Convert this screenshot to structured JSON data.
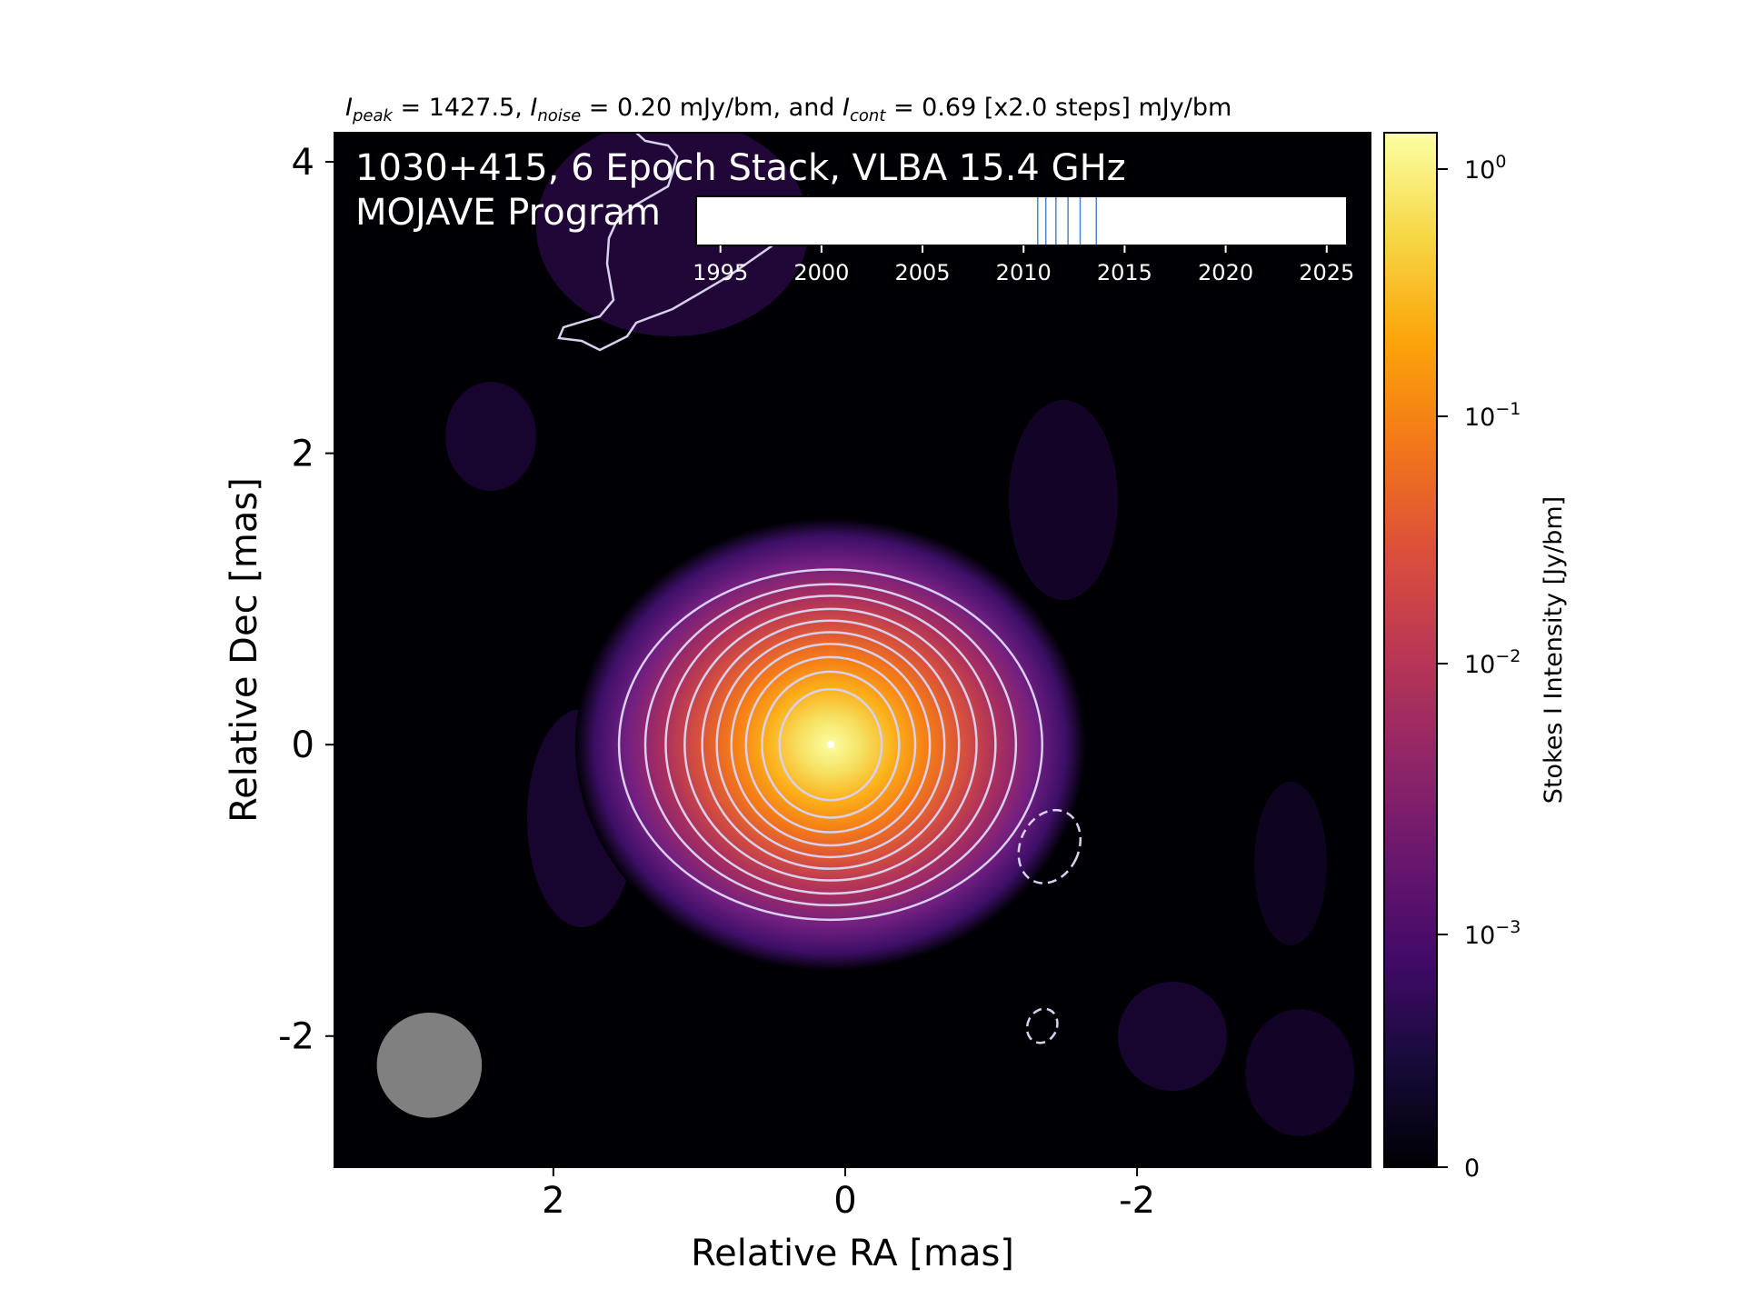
{
  "header": {
    "peak_label": "I",
    "peak_sub": "peak",
    "peak_value": " = 1427.5, ",
    "noise_label": "I",
    "noise_sub": "noise",
    "noise_value": " = 0.20 mJy/bm, and ",
    "cont_label": "I",
    "cont_sub": "cont",
    "cont_value": " = 0.69 [x2.0 steps] mJy/bm"
  },
  "overlay": {
    "title_line1": "1030+415, 6 Epoch Stack, VLBA 15.4 GHz",
    "title_line2": "MOJAVE Program"
  },
  "colors": {
    "background": "#000004",
    "contour": "#d9d0ee",
    "beam": "#808080",
    "epoch_marker": "#4a86c8"
  },
  "chart_data": [
    {
      "type": "heatmap",
      "title": "",
      "xlabel": "Relative RA [mas]",
      "ylabel": "Relative Dec [mas]",
      "xlim": [
        3.5,
        -3.6
      ],
      "ylim": [
        -2.9,
        4.2
      ],
      "x_ticks": [
        2,
        0,
        -2
      ],
      "x_tick_labels": [
        "2",
        "0",
        "-2"
      ],
      "y_ticks": [
        4,
        2,
        0,
        -2
      ],
      "y_tick_labels": [
        "4",
        "2",
        "0",
        "-2"
      ],
      "x_inverted": true,
      "colormap": "inferno",
      "grid": false,
      "core": {
        "ra": 0.1,
        "dec": 0.0,
        "peak_jy_bm": 1.4275
      },
      "contour_levels_mjy_bm": [
        0.69,
        1.38,
        2.76,
        5.52,
        11.04,
        22.08,
        44.16,
        88.32,
        176.6,
        353.3,
        706.6,
        1413.1
      ],
      "contour_radii_mas": [
        [
          1.45,
          1.2
        ],
        [
          1.27,
          1.1
        ],
        [
          1.13,
          1.02
        ],
        [
          1.0,
          0.93
        ],
        [
          0.88,
          0.85
        ],
        [
          0.78,
          0.77
        ],
        [
          0.68,
          0.69
        ],
        [
          0.58,
          0.6
        ],
        [
          0.47,
          0.5
        ],
        [
          0.35,
          0.38
        ]
      ],
      "negative_contours": [
        {
          "ra": -1.4,
          "dec": -0.7,
          "rx": 0.2,
          "ry": 0.26
        },
        {
          "ra": -1.35,
          "dec": -1.93,
          "rx": 0.1,
          "ry": 0.12
        }
      ],
      "beam": {
        "ra": 2.85,
        "dec": -2.2,
        "major_mas": 0.72,
        "minor_mas": 0.72
      }
    },
    {
      "type": "scatter",
      "title": "",
      "xlabel": "",
      "ylabel": "",
      "xlim": [
        1993.8,
        2026
      ],
      "x_ticks": [
        1995,
        2000,
        2005,
        2010,
        2015,
        2020,
        2025
      ],
      "x_tick_labels": [
        "1995",
        "2000",
        "2005",
        "2010",
        "2015",
        "2020",
        "2025"
      ],
      "epochs": [
        2010.7,
        2011.1,
        2011.6,
        2012.2,
        2012.8,
        2013.6
      ]
    },
    {
      "type": "heatmap",
      "title": "",
      "ylabel": "Stokes I Intensity [Jy/bm]",
      "scale": "symlog",
      "range": [
        0,
        1.4275
      ],
      "ticks": [
        0,
        0.001,
        0.01,
        0.1,
        1
      ],
      "tick_labels": [
        "0",
        "10^-3",
        "10^-2",
        "10^-1",
        "10^0"
      ],
      "colormap": "inferno"
    }
  ]
}
